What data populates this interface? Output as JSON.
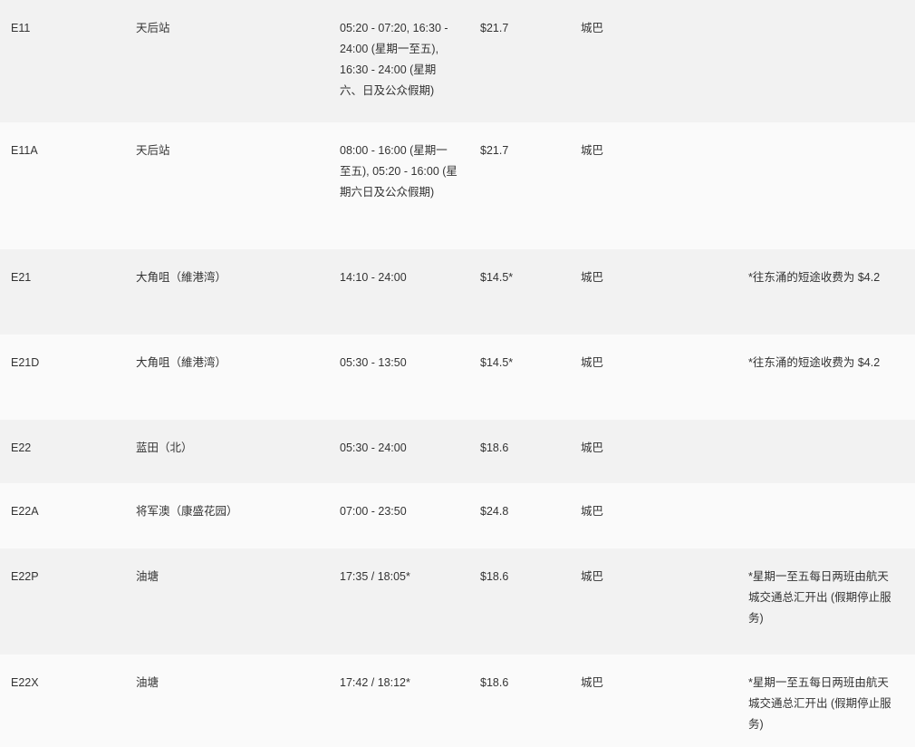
{
  "rows": [
    {
      "route": "E11",
      "destination": "天后站",
      "hours": "05:20 - 07:20, 16:30 - 24:00 (星期一至五), 16:30 - 24:00 (星期六、日及公众假期)",
      "fare": "$21.7",
      "operator": "城巴",
      "remarks": ""
    },
    {
      "route": "E11A",
      "destination": "天后站",
      "hours": "08:00 - 16:00 (星期一至五), 05:20 - 16:00 (星期六日及公众假期)",
      "fare": "$21.7",
      "operator": "城巴",
      "remarks": ""
    },
    {
      "route": "E21",
      "destination": "大角咀（維港湾）",
      "hours": "14:10 - 24:00",
      "fare": "$14.5*",
      "operator": "城巴",
      "remarks": "*往东涌的短途收费为 $4.2"
    },
    {
      "route": "E21D",
      "destination": "大角咀（維港湾）",
      "hours": "05:30 - 13:50",
      "fare": "$14.5*",
      "operator": "城巴",
      "remarks": "*往东涌的短途收费为 $4.2"
    },
    {
      "route": "E22",
      "destination": "蓝田（北）",
      "hours": "05:30 - 24:00",
      "fare": "$18.6",
      "operator": "城巴",
      "remarks": ""
    },
    {
      "route": "E22A",
      "destination": "将军澳（康盛花园）",
      "hours": "07:00 - 23:50",
      "fare": "$24.8",
      "operator": "城巴",
      "remarks": ""
    },
    {
      "route": "E22P",
      "destination": "油塘",
      "hours": "17:35 / 18:05*",
      "fare": "$18.6",
      "operator": "城巴",
      "remarks": "*星期一至五每日两班由航天城交通总汇开出 (假期停止服务)"
    },
    {
      "route": "E22X",
      "destination": "油塘",
      "hours": "17:42 / 18:12*",
      "fare": "$18.6",
      "operator": "城巴",
      "remarks": "*星期一至五每日两班由航天城交通总汇开出 (假期停止服务)"
    }
  ]
}
